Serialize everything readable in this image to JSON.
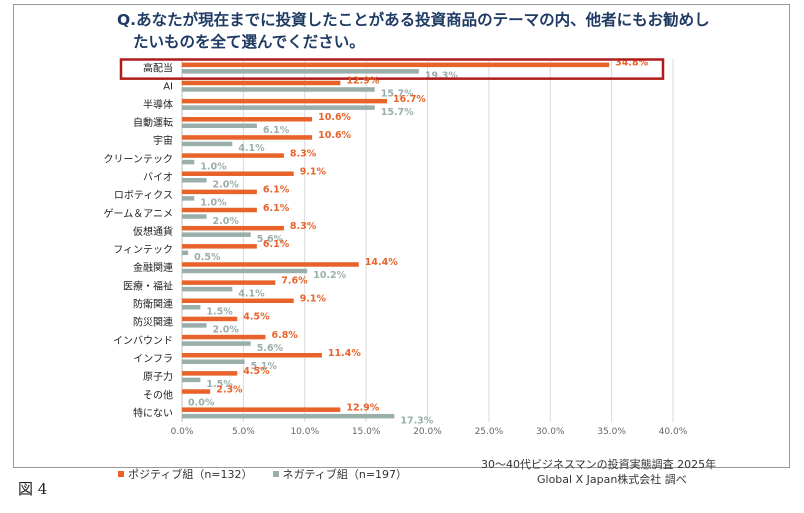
{
  "figure_label": "図 4",
  "source": {
    "line1": "30～40代ビジネスマンの投資実態調査 2025年",
    "line2": "Global X Japan株式会社 調べ"
  },
  "colors": {
    "positive": "#e8632a",
    "negative": "#9aaeab",
    "title": "#1f3b63",
    "highlight": "#b01c1c",
    "grid": "#d9d9d9"
  },
  "chart_data": {
    "type": "bar",
    "orientation": "horizontal",
    "title_line1": "Q.あなたが現在までに投資したことがある投資商品のテーマの内、他者にもお勧めし",
    "title_line2": "たいものを全て選んでください。",
    "categories": [
      "高配当",
      "AI",
      "半導体",
      "自動運転",
      "宇宙",
      "クリーンテック",
      "バイオ",
      "ロボティクス",
      "ゲーム＆アニメ",
      "仮想通貨",
      "フィンテック",
      "金融関連",
      "医療・福祉",
      "防衛関連",
      "防災関連",
      "インバウンド",
      "インフラ",
      "原子力",
      "その他",
      "特にない"
    ],
    "series": [
      {
        "name": "ポジティブ組（n=132）",
        "values": [
          34.8,
          12.9,
          16.7,
          10.6,
          10.6,
          8.3,
          9.1,
          6.1,
          6.1,
          8.3,
          6.1,
          14.4,
          7.6,
          9.1,
          4.5,
          6.8,
          11.4,
          4.5,
          2.3,
          12.9
        ]
      },
      {
        "name": "ネガティブ組（n=197）",
        "values": [
          19.3,
          15.7,
          15.7,
          6.1,
          4.1,
          1.0,
          2.0,
          1.0,
          2.0,
          5.6,
          0.5,
          10.2,
          4.1,
          1.5,
          2.0,
          5.6,
          5.1,
          1.5,
          0.0,
          17.3
        ]
      }
    ],
    "xlim": [
      0,
      40
    ],
    "xticks": [
      0,
      5,
      10,
      15,
      20,
      25,
      30,
      35,
      40
    ],
    "value_suffix": "%",
    "highlighted_category": "高配当",
    "grid": true,
    "legend_position": "bottom-left"
  }
}
